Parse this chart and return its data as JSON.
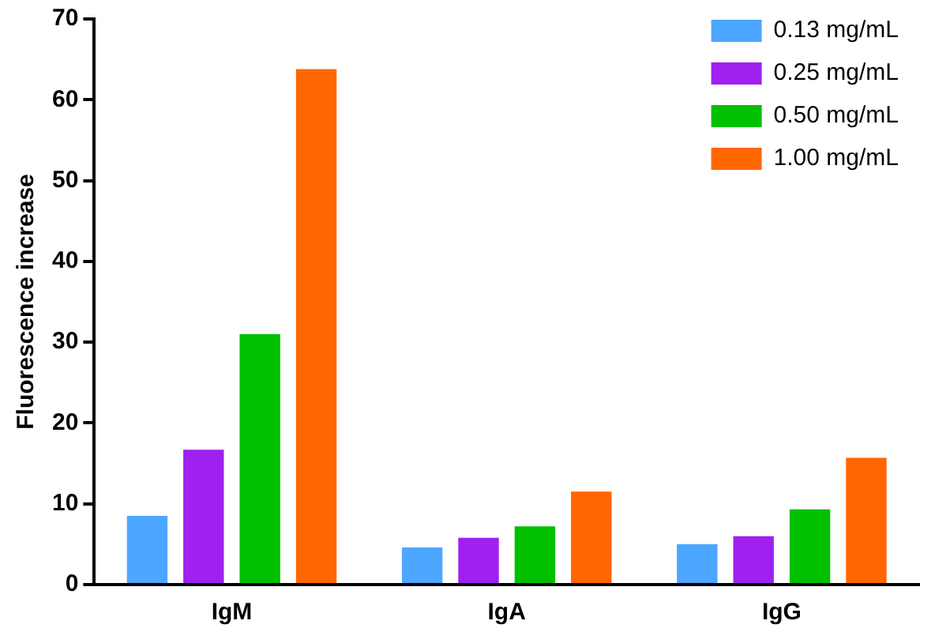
{
  "chart_data": {
    "type": "bar",
    "ylabel": "Fluorescence increase",
    "categories": [
      "IgM",
      "IgA",
      "IgG"
    ],
    "series": [
      {
        "name": "0.13 mg/mL",
        "color": "#4da6ff",
        "values": [
          8.5,
          4.6,
          5.0
        ]
      },
      {
        "name": "0.25 mg/mL",
        "color": "#a020f0",
        "values": [
          16.7,
          5.8,
          6.0
        ]
      },
      {
        "name": "0.50 mg/mL",
        "color": "#00c000",
        "values": [
          31.0,
          7.2,
          9.3
        ]
      },
      {
        "name": "1.00 mg/mL",
        "color": "#ff6600",
        "values": [
          63.8,
          11.5,
          15.7
        ]
      }
    ],
    "ylim": [
      0,
      70
    ],
    "yticks": [
      0,
      10,
      20,
      30,
      40,
      50,
      60,
      70
    ],
    "grid": false,
    "legend": "top right"
  }
}
